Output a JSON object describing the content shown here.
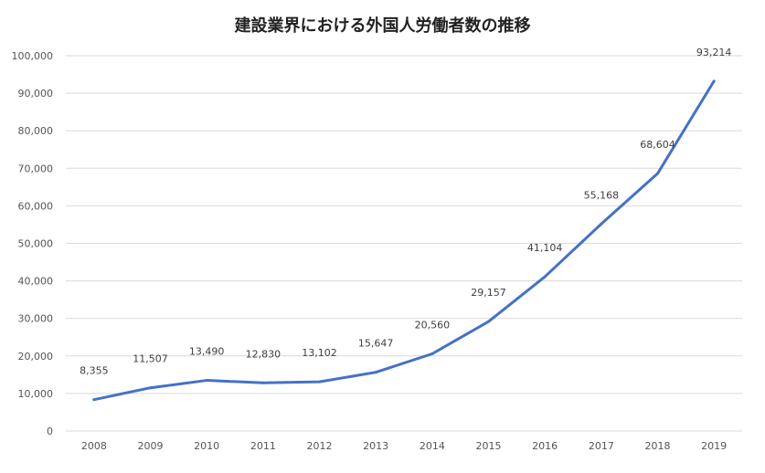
{
  "chart_data": {
    "type": "line",
    "title": "建設業界における外国人労働者数の推移",
    "xlabel": "",
    "ylabel": "",
    "categories": [
      "2008",
      "2009",
      "2010",
      "2011",
      "2012",
      "2013",
      "2014",
      "2015",
      "2016",
      "2017",
      "2018",
      "2019"
    ],
    "series": [
      {
        "values": [
          8355,
          11507,
          13490,
          12830,
          13102,
          15647,
          20560,
          29157,
          41104,
          55168,
          68604,
          93214
        ]
      }
    ],
    "data_labels": [
      "8,355",
      "11,507",
      "13,490",
      "12,830",
      "13,102",
      "15,647",
      "20,560",
      "29,157",
      "41,104",
      "55,168",
      "68,604",
      "93,214"
    ],
    "ylim": [
      0,
      100000
    ],
    "y_ticks": [
      "0",
      "10,000",
      "20,000",
      "30,000",
      "40,000",
      "50,000",
      "60,000",
      "70,000",
      "80,000",
      "90,000",
      "100,000"
    ],
    "grid": true,
    "legend": "none",
    "line_color": "#4472C4"
  }
}
